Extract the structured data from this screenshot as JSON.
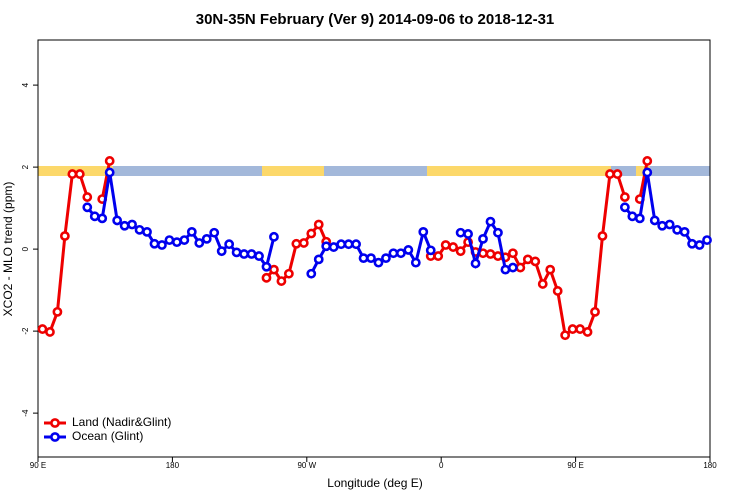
{
  "chart_data": {
    "type": "line",
    "title": "30N-35N February (Ver 9)   2014-09-06 to 2018-12-31",
    "x_label": "Longitude (deg E)",
    "y_label": "XCO2 - MLO trend (ppm)",
    "xlim": [
      90,
      540
    ],
    "ylim": [
      -5.07,
      5.1
    ],
    "xticks": [
      {
        "value": 90,
        "label": "90 E"
      },
      180,
      {
        "value": 270,
        "label": "90 W"
      },
      {
        "value": 360,
        "label": "0"
      },
      {
        "value": 450,
        "label": "90 E"
      },
      {
        "value": 540,
        "label": "180"
      }
    ],
    "yticks": [
      -4,
      -2,
      0,
      2,
      4
    ],
    "legend": "bottomleft",
    "series": [
      {
        "name": "Land (Nadir&Glint)",
        "color": "#ee0000",
        "x": [
          93,
          98,
          103,
          108,
          113,
          118,
          123,
          128,
          133,
          138,
          238,
          243,
          248,
          253,
          258,
          263,
          268,
          273,
          278,
          283,
          348,
          353,
          358,
          363,
          368,
          373,
          378,
          383,
          388,
          393,
          398,
          403,
          408,
          413,
          418,
          423,
          428,
          433,
          438,
          443,
          448,
          453,
          458,
          463,
          468,
          473,
          478,
          483,
          488,
          493,
          498
        ],
        "values": [
          -1.95,
          -2.02,
          -1.53,
          0.32,
          1.83,
          1.83,
          1.27,
          null,
          1.22,
          2.15,
          null,
          -0.7,
          -0.5,
          -0.78,
          -0.6,
          0.13,
          0.15,
          0.38,
          0.6,
          0.18,
          null,
          -0.17,
          -0.17,
          0.1,
          0.05,
          -0.05,
          0.17,
          -0.07,
          -0.1,
          -0.12,
          -0.17,
          -0.2,
          -0.1,
          -0.45,
          -0.25,
          -0.3,
          -0.85,
          -0.5,
          -1.02,
          -2.1,
          -1.95,
          -1.95,
          -2.02,
          -1.53,
          0.32,
          1.83,
          1.83,
          1.27,
          null,
          1.22,
          2.15
        ]
      },
      {
        "name": "Ocean (Glint)",
        "color": "#0000ee",
        "x": [
          123,
          128,
          133,
          138,
          143,
          148,
          153,
          158,
          163,
          168,
          173,
          178,
          183,
          188,
          193,
          198,
          203,
          208,
          213,
          218,
          223,
          228,
          233,
          238,
          243,
          248,
          253,
          273,
          278,
          283,
          288,
          293,
          298,
          303,
          308,
          313,
          318,
          323,
          328,
          333,
          338,
          343,
          348,
          353,
          363,
          373,
          378,
          383,
          388,
          393,
          398,
          403,
          408,
          413,
          483,
          488,
          493,
          498,
          503,
          508,
          513,
          518,
          523,
          528,
          533,
          538
        ],
        "values": [
          1.02,
          0.8,
          0.75,
          1.87,
          0.7,
          0.57,
          0.6,
          0.47,
          0.42,
          0.13,
          0.1,
          0.22,
          0.17,
          0.22,
          0.42,
          0.15,
          0.25,
          0.4,
          -0.05,
          0.12,
          -0.08,
          -0.12,
          -0.12,
          -0.17,
          -0.43,
          0.3,
          null,
          -0.6,
          -0.25,
          0.07,
          0.05,
          0.12,
          0.12,
          0.12,
          -0.22,
          -0.22,
          -0.33,
          -0.22,
          -0.1,
          -0.1,
          -0.02,
          -0.33,
          0.42,
          -0.03,
          null,
          0.4,
          0.37,
          -0.35,
          0.25,
          0.67,
          0.4,
          -0.5,
          -0.45,
          null,
          1.02,
          0.8,
          0.75,
          1.87,
          0.7,
          0.57,
          0.6,
          0.47,
          0.42,
          0.13,
          0.1,
          0.22
        ]
      }
    ]
  }
}
